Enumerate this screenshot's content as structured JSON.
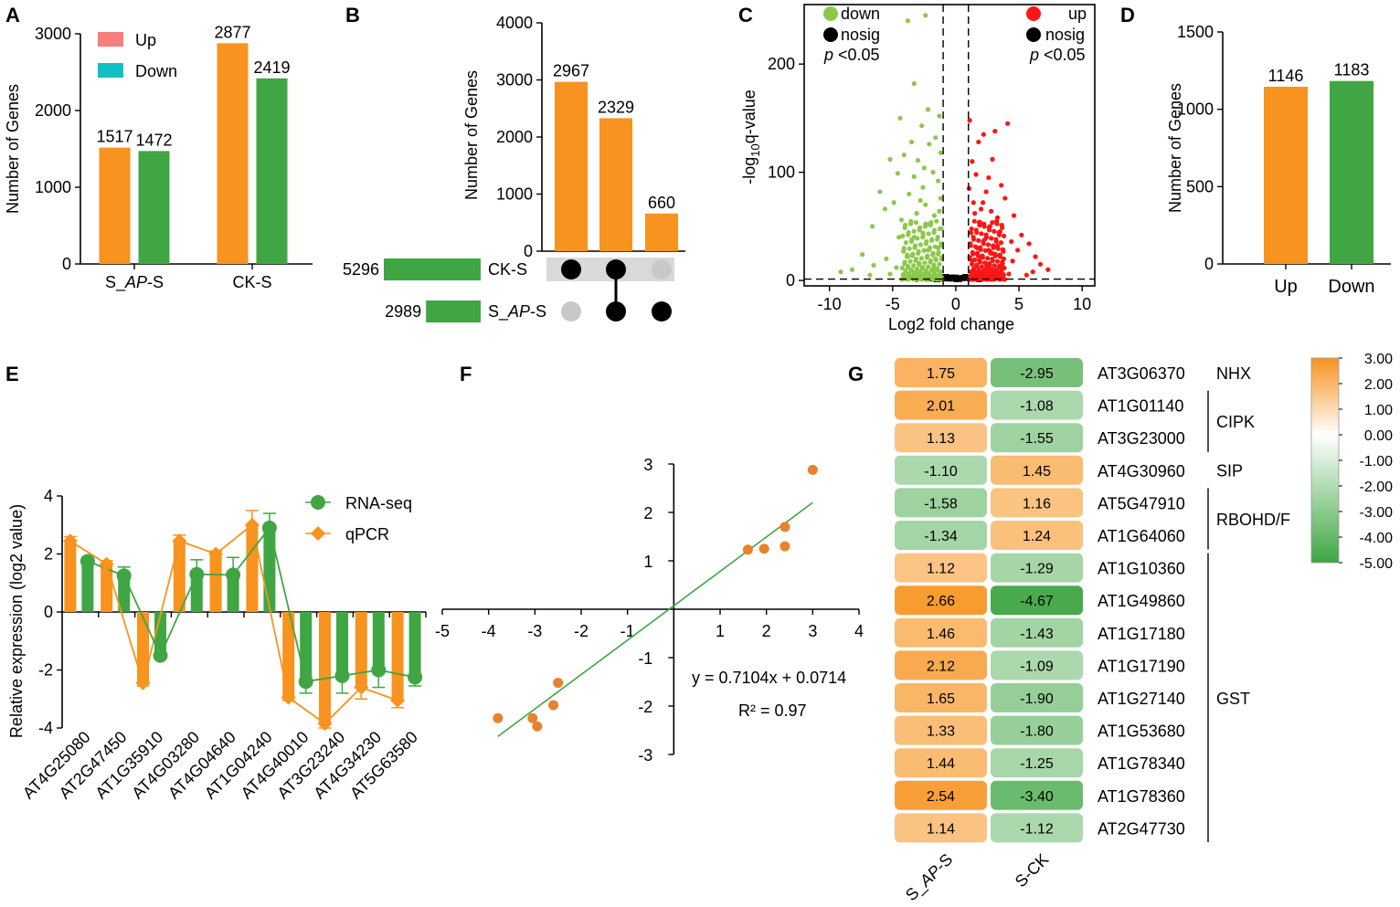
{
  "colors": {
    "orange": "#F7931E",
    "green": "#3FA643",
    "up_red": "#FF1515",
    "down_green": "#8CC84B",
    "legend_up": "#F57F7B",
    "legend_down": "#14BFC4",
    "grey_dot": "#C8C8C8",
    "upset_band": "#D9D9D9"
  },
  "chart_data": [
    {
      "panel": "A",
      "type": "bar",
      "categories": [
        "S_AP-S",
        "CK-S"
      ],
      "series": [
        {
          "name": "Up",
          "values": [
            1517,
            2877
          ]
        },
        {
          "name": "Down",
          "values": [
            1472,
            2419
          ]
        }
      ],
      "ylabel": "Number of Genes",
      "ylim": [
        0,
        3000
      ],
      "yticks": [
        0,
        1000,
        2000,
        3000
      ],
      "legend": [
        "Up",
        "Down"
      ],
      "legend_position": "top-left"
    },
    {
      "panel": "B",
      "type": "bar",
      "subtype": "upset",
      "intersections": [
        {
          "value": 2967,
          "sets": [
            "CK-S"
          ]
        },
        {
          "value": 2329,
          "sets": [
            "CK-S",
            "S_AP-S"
          ]
        },
        {
          "value": 660,
          "sets": [
            "S_AP-S"
          ]
        }
      ],
      "set_sizes": [
        {
          "name": "CK-S",
          "size": 5296
        },
        {
          "name": "S_AP-S",
          "size": 2989
        }
      ],
      "ylabel": "Number of Genes",
      "ylim": [
        0,
        4000
      ],
      "yticks": [
        0,
        1000,
        2000,
        3000,
        4000
      ]
    },
    {
      "panel": "C",
      "type": "scatter",
      "subtype": "volcano",
      "xlabel": "Log2 fold change",
      "ylabel": "-log10q-value",
      "xlim": [
        -12,
        11
      ],
      "ylim": [
        -5,
        255
      ],
      "xticks": [
        -10,
        -5,
        0,
        5,
        10
      ],
      "yticks": [
        0,
        100,
        200
      ],
      "thresholds": {
        "x": [
          -1,
          1
        ],
        "y": 1.3
      },
      "legend": {
        "down": "down",
        "nosig": "nosig",
        "up": "up",
        "pval": "<0.05"
      },
      "up_points": [
        [
          1.1,
          148
        ],
        [
          1.3,
          110
        ],
        [
          1.8,
          128
        ],
        [
          2.2,
          135
        ],
        [
          2.9,
          112
        ],
        [
          3.1,
          138
        ],
        [
          4.1,
          145
        ],
        [
          2.6,
          95
        ],
        [
          3.6,
          88
        ],
        [
          1.6,
          98
        ],
        [
          2.4,
          82
        ],
        [
          3.9,
          76
        ],
        [
          1.4,
          72
        ],
        [
          2.0,
          66
        ],
        [
          4.6,
          60
        ],
        [
          5.2,
          42
        ],
        [
          5.8,
          34
        ],
        [
          6.3,
          22
        ],
        [
          6.7,
          15
        ],
        [
          7.3,
          10
        ],
        [
          4.9,
          28
        ],
        [
          3.3,
          58
        ],
        [
          1.9,
          54
        ],
        [
          2.7,
          50
        ],
        [
          1.2,
          44
        ],
        [
          3.5,
          45
        ],
        [
          2.3,
          38
        ],
        [
          4.4,
          36
        ],
        [
          1.7,
          30
        ],
        [
          2.9,
          25
        ],
        [
          3.8,
          20
        ],
        [
          1.3,
          18
        ],
        [
          2.5,
          12
        ],
        [
          3.1,
          8
        ],
        [
          4.2,
          6
        ],
        [
          1.6,
          4
        ],
        [
          2.0,
          3
        ],
        [
          5.6,
          5
        ],
        [
          6.1,
          8
        ],
        [
          1.05,
          85
        ],
        [
          1.5,
          62
        ],
        [
          2.15,
          72
        ],
        [
          2.8,
          64
        ],
        [
          3.3,
          32
        ],
        [
          1.8,
          22
        ],
        [
          2.6,
          28
        ],
        [
          3.7,
          12
        ],
        [
          4.5,
          18
        ],
        [
          1.25,
          8
        ],
        [
          2.35,
          16
        ]
      ],
      "down_points": [
        [
          -3.8,
          240
        ],
        [
          -2.4,
          245
        ],
        [
          -3.3,
          182
        ],
        [
          -2.2,
          158
        ],
        [
          -1.3,
          152
        ],
        [
          -4.4,
          150
        ],
        [
          -2.7,
          143
        ],
        [
          -1.6,
          132
        ],
        [
          -3.5,
          128
        ],
        [
          -2.1,
          126
        ],
        [
          -1.2,
          118
        ],
        [
          -4.1,
          116
        ],
        [
          -3.0,
          111
        ],
        [
          -5.2,
          112
        ],
        [
          -2.5,
          104
        ],
        [
          -1.8,
          100
        ],
        [
          -4.6,
          99
        ],
        [
          -3.3,
          96
        ],
        [
          -1.4,
          92
        ],
        [
          -2.6,
          86
        ],
        [
          -6.0,
          82
        ],
        [
          -3.7,
          80
        ],
        [
          -1.2,
          76
        ],
        [
          -4.9,
          72
        ],
        [
          -2.4,
          70
        ],
        [
          -5.6,
          66
        ],
        [
          -3.1,
          62
        ],
        [
          -1.7,
          60
        ],
        [
          -6.6,
          50
        ],
        [
          -4.3,
          56
        ],
        [
          -2.1,
          52
        ],
        [
          -7.4,
          24
        ],
        [
          -8.2,
          10
        ],
        [
          -9.1,
          8
        ],
        [
          -6.5,
          14
        ],
        [
          -5.5,
          20
        ],
        [
          -4.1,
          30
        ],
        [
          -3.3,
          40
        ],
        [
          -2.6,
          44
        ],
        [
          -1.9,
          38
        ],
        [
          -1.4,
          30
        ],
        [
          -3.8,
          22
        ],
        [
          -2.9,
          16
        ],
        [
          -4.7,
          12
        ],
        [
          -1.7,
          10
        ],
        [
          -2.3,
          6
        ],
        [
          -3.6,
          4
        ],
        [
          -5.2,
          6
        ],
        [
          -6.8,
          5
        ],
        [
          -1.15,
          48
        ],
        [
          -1.6,
          20
        ],
        [
          -2.2,
          28
        ],
        [
          -3.0,
          9
        ],
        [
          -4.5,
          40
        ],
        [
          -1.3,
          64
        ],
        [
          -2.8,
          74
        ]
      ]
    },
    {
      "panel": "D",
      "type": "bar",
      "categories": [
        "Up",
        "Down"
      ],
      "values": [
        1146,
        1183
      ],
      "ylabel": "Number of Genes",
      "ylim": [
        0,
        1500
      ],
      "yticks": [
        0,
        500,
        1000,
        1500
      ]
    },
    {
      "panel": "E",
      "type": "bar",
      "subtype": "bar-line-combo",
      "categories": [
        "AT4G25080",
        "AT2G47450",
        "AT1G35910",
        "AT4G03280",
        "AT4G04640",
        "AT1G04240",
        "AT4G40010",
        "AT3G23240",
        "AT4G34230",
        "AT5G63580"
      ],
      "series": [
        {
          "name": "RNA-seq",
          "values": [
            1.75,
            1.25,
            -1.5,
            1.3,
            1.28,
            2.9,
            -2.4,
            -2.2,
            -2.0,
            -2.25
          ],
          "err": [
            0.12,
            0.3,
            0.12,
            0.5,
            0.6,
            0.5,
            0.4,
            0.6,
            0.6,
            0.3
          ]
        },
        {
          "name": "qPCR",
          "values": [
            2.45,
            1.65,
            -2.45,
            2.45,
            2.0,
            3.0,
            -2.95,
            -3.85,
            -2.6,
            -3.05
          ],
          "err": [
            0.15,
            0.12,
            0.1,
            0.2,
            0.1,
            0.5,
            0.1,
            0.15,
            0.4,
            0.25
          ]
        }
      ],
      "ylabel": "Relative expression (log2 value)",
      "ylim": [
        -4,
        4
      ],
      "yticks": [
        -4,
        -2,
        0,
        2,
        4
      ],
      "legend_position": "top-right"
    },
    {
      "panel": "F",
      "type": "scatter",
      "points": [
        [
          -3.8,
          -2.25
        ],
        [
          -3.05,
          -2.25
        ],
        [
          -2.95,
          -2.42
        ],
        [
          -2.6,
          -1.98
        ],
        [
          -2.5,
          -1.52
        ],
        [
          1.6,
          1.23
        ],
        [
          1.95,
          1.25
        ],
        [
          2.4,
          1.3
        ],
        [
          2.4,
          1.7
        ],
        [
          3.0,
          2.88
        ]
      ],
      "fit": {
        "slope": 0.7104,
        "intercept": 0.0714,
        "x_range": [
          -3.8,
          3.0
        ]
      },
      "equation": "y = 0.7104x + 0.0714",
      "r2": "R² = 0.97",
      "xlim": [
        -5,
        4
      ],
      "ylim": [
        -3,
        3
      ],
      "xticks": [
        -5,
        -4,
        -3,
        -2,
        -1,
        1,
        2,
        3,
        4
      ],
      "yticks": [
        -3,
        -2,
        -1,
        1,
        2,
        3
      ]
    },
    {
      "panel": "G",
      "type": "heatmap",
      "columns": [
        "S_AP-S",
        "S-CK"
      ],
      "rows": [
        {
          "gene": "AT3G06370",
          "values": [
            1.75,
            -2.95
          ],
          "labels": [
            "1.75",
            "-2.95"
          ]
        },
        {
          "gene": "AT1G01140",
          "values": [
            2.01,
            -1.08
          ],
          "labels": [
            "2.01",
            "-1.08"
          ]
        },
        {
          "gene": "AT3G23000",
          "values": [
            1.13,
            -1.55
          ],
          "labels": [
            "1.13",
            "-1.55"
          ]
        },
        {
          "gene": "AT4G30960",
          "values": [
            -1.1,
            1.45
          ],
          "labels": [
            "-1.10",
            "1.45"
          ]
        },
        {
          "gene": "AT5G47910",
          "values": [
            -1.58,
            1.16
          ],
          "labels": [
            "-1.58",
            "1.16"
          ]
        },
        {
          "gene": "AT1G64060",
          "values": [
            -1.34,
            1.24
          ],
          "labels": [
            "-1.34",
            "1.24"
          ]
        },
        {
          "gene": "AT1G10360",
          "values": [
            1.12,
            -1.29
          ],
          "labels": [
            "1.12",
            "-1.29"
          ]
        },
        {
          "gene": "AT1G49860",
          "values": [
            2.66,
            -4.67
          ],
          "labels": [
            "2.66",
            "-4.67"
          ]
        },
        {
          "gene": "AT1G17180",
          "values": [
            1.46,
            -1.43
          ],
          "labels": [
            "1.46",
            "-1.43"
          ]
        },
        {
          "gene": "AT1G17190",
          "values": [
            2.12,
            -1.09
          ],
          "labels": [
            "2.12",
            "-1.09"
          ]
        },
        {
          "gene": "AT1G27140",
          "values": [
            1.65,
            -1.9
          ],
          "labels": [
            "1.65",
            "-1.90"
          ]
        },
        {
          "gene": "AT1G53680",
          "values": [
            1.33,
            -1.8
          ],
          "labels": [
            "1.33",
            "-1.80"
          ]
        },
        {
          "gene": "AT1G78340",
          "values": [
            1.44,
            -1.25
          ],
          "labels": [
            "1.44",
            "-1.25"
          ]
        },
        {
          "gene": "AT1G78360",
          "values": [
            2.54,
            -3.4
          ],
          "labels": [
            "2.54",
            "-3.40"
          ]
        },
        {
          "gene": "AT2G47730",
          "values": [
            1.14,
            -1.12
          ],
          "labels": [
            "1.14",
            "-1.12"
          ]
        }
      ],
      "groups": [
        {
          "name": "NHX",
          "from": 0,
          "to": 0
        },
        {
          "name": "CIPK",
          "from": 1,
          "to": 2
        },
        {
          "name": "SIP",
          "from": 3,
          "to": 3
        },
        {
          "name": "RBOHD/F",
          "from": 4,
          "to": 5
        },
        {
          "name": "GST",
          "from": 6,
          "to": 14
        }
      ],
      "colorbar": {
        "min": -5,
        "max": 3,
        "ticks": [
          "3.00",
          "2.00",
          "1.00",
          "0.00",
          "-1.00",
          "-2.00",
          "-3.00",
          "-4.00",
          "-5.00"
        ]
      }
    }
  ]
}
